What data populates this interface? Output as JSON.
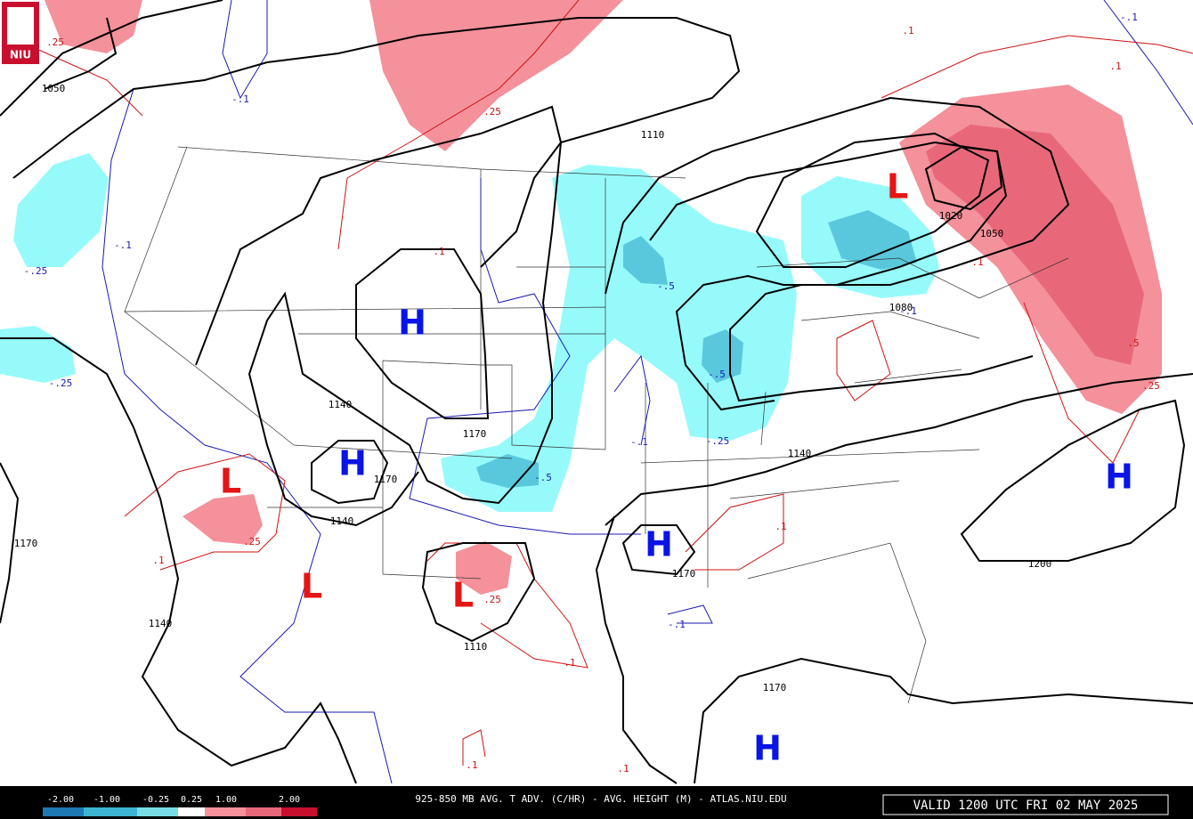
{
  "logo": "NIU",
  "highs": [
    "H",
    "H",
    "H",
    "H",
    "H"
  ],
  "lows": [
    "L",
    "L",
    "L",
    "L"
  ],
  "height_labels": [
    "1050",
    "1110",
    "1140",
    "1170",
    "1170",
    "1140",
    "1140",
    "1170",
    "1140",
    "1110",
    "1170",
    "1170",
    "1200",
    "1020",
    "1050",
    "1080"
  ],
  "advection_labels": [
    "-.1",
    "-.1",
    "-.25",
    "-.25",
    "-.5",
    "-.5",
    "-.25",
    "-.1",
    "-.5",
    "-.1",
    "-.1",
    "-.1",
    ".25",
    ".25",
    ".1",
    ".1",
    ".1",
    ".1",
    ".5",
    ".25",
    ".1",
    ".25",
    ".1",
    ".25",
    ".1",
    ".1",
    ".1"
  ],
  "colorbar": {
    "labels": [
      "-2.00",
      "-1.00",
      "-0.25",
      "0.25",
      "1.00",
      "2.00"
    ]
  },
  "footer": {
    "title": "925-850 MB AVG. T ADV. (C/HR) - AVG. HEIGHT (M) - ATLAS.NIU.EDU",
    "valid": "VALID 1200 UTC FRI 02 MAY 2025"
  }
}
